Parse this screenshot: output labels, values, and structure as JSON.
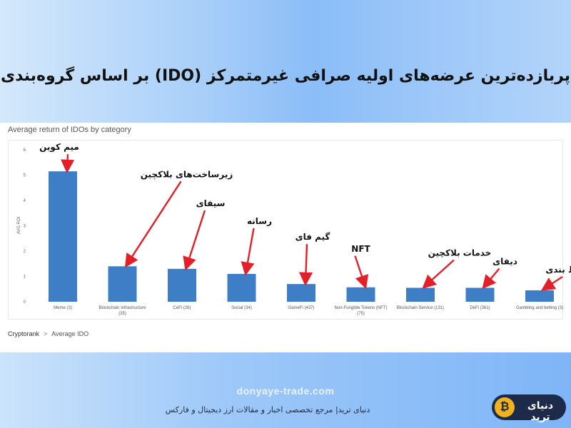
{
  "headline": "پربازده‌ترین عرضه‌های اولیه صرافی غیرمتمرکز (IDO) بر اساس گروه‌بندی",
  "chart_data": {
    "type": "bar",
    "title": "Average return of IDOs by category",
    "ylabel": "AVG ROI",
    "xlabel": "",
    "ylim": [
      0,
      6
    ],
    "yticks": [
      "0",
      "1",
      "2",
      "3",
      "4",
      "5",
      "6"
    ],
    "grid": false,
    "bar_color": "#3d7ec6",
    "categories": [
      "Meme (3)",
      "Blockchain Infrastructure (35)",
      "CeFi (26)",
      "Social (34)",
      "GameFi (437)",
      "Non-Fungible Tokens (NFT) (75)",
      "Blockchain Service (131)",
      "DeFi (361)",
      "Gambling and betting (3)"
    ],
    "values": [
      5.15,
      1.4,
      1.3,
      1.1,
      0.7,
      0.57,
      0.55,
      0.55,
      0.45
    ],
    "annotations": [
      "میم کوین",
      "زیرساخت‌های بلاکچین",
      "سیفای",
      "رسانه",
      "گیم فای",
      "NFT",
      "خدمات بلاکچین",
      "دیفای",
      "شرط بندی"
    ],
    "annotation_color": "#e3202a"
  },
  "breadcrumb": {
    "source": "Cryptorank",
    "separator": ">",
    "current": "Average IDO"
  },
  "footer": {
    "site": "donyaye-trade.com",
    "tagline": "دنیای ترید| مرجع تخصصی اخبار و مقالات ارز دیجیتال و فارکس",
    "logo_text": "دنیای ترید",
    "logo_mark": "₿"
  }
}
